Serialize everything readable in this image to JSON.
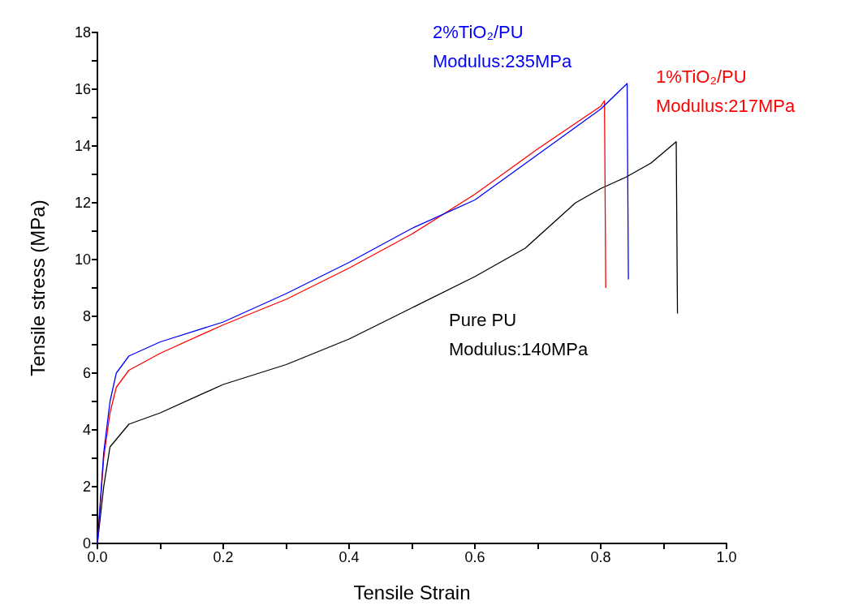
{
  "chart_data": {
    "type": "line",
    "xlabel": "Tensile Strain",
    "ylabel": "Tensile stress (MPa)",
    "xlim": [
      0,
      1.0
    ],
    "ylim": [
      0,
      18
    ],
    "xticks": [
      {
        "value": 0,
        "label": "0.0"
      },
      {
        "value": 0.1,
        "label": null
      },
      {
        "value": 0.2,
        "label": "0.2"
      },
      {
        "value": 0.3,
        "label": null
      },
      {
        "value": 0.4,
        "label": "0.4"
      },
      {
        "value": 0.5,
        "label": null
      },
      {
        "value": 0.6,
        "label": "0.6"
      },
      {
        "value": 0.7,
        "label": null
      },
      {
        "value": 0.8,
        "label": "0.8"
      },
      {
        "value": 0.9,
        "label": null
      },
      {
        "value": 1.0,
        "label": "1.0"
      }
    ],
    "yticks": [
      0,
      {
        "value": 1,
        "label": null
      },
      2,
      {
        "value": 3,
        "label": null
      },
      4,
      {
        "value": 5,
        "label": null
      },
      6,
      {
        "value": 7,
        "label": null
      },
      8,
      {
        "value": 9,
        "label": null
      },
      10,
      {
        "value": 11,
        "label": null
      },
      12,
      {
        "value": 13,
        "label": null
      },
      14,
      {
        "value": 15,
        "label": null
      },
      16,
      {
        "value": 17,
        "label": null
      },
      18
    ],
    "legend": false,
    "marker": "none",
    "line_style": "solid",
    "series": [
      {
        "name": "Pure PU",
        "color": "#000000",
        "x": [
          0,
          0.01,
          0.02,
          0.05,
          0.1,
          0.2,
          0.3,
          0.4,
          0.5,
          0.6,
          0.68,
          0.72,
          0.76,
          0.8,
          0.84,
          0.88,
          0.92,
          0.922
        ],
        "values": [
          0,
          2.0,
          3.4,
          4.2,
          4.6,
          5.6,
          6.3,
          7.2,
          8.3,
          9.4,
          10.4,
          11.2,
          12.0,
          12.5,
          12.9,
          13.4,
          14.15,
          8.1
        ]
      },
      {
        "name": "1%TiO₂/PU",
        "color": "#ff0000",
        "x": [
          0,
          0.01,
          0.02,
          0.03,
          0.05,
          0.1,
          0.2,
          0.3,
          0.4,
          0.5,
          0.6,
          0.7,
          0.8,
          0.806,
          0.808
        ],
        "values": [
          0,
          3.0,
          4.6,
          5.5,
          6.1,
          6.7,
          7.7,
          8.6,
          9.7,
          10.9,
          12.3,
          13.9,
          15.4,
          15.6,
          9.0
        ]
      },
      {
        "name": "2%TiO₂/PU",
        "color": "#0000ff",
        "x": [
          0,
          0.01,
          0.02,
          0.03,
          0.05,
          0.1,
          0.2,
          0.3,
          0.4,
          0.5,
          0.6,
          0.7,
          0.8,
          0.842,
          0.844
        ],
        "values": [
          0,
          3.2,
          5.0,
          6.0,
          6.6,
          7.1,
          7.8,
          8.8,
          9.9,
          11.1,
          12.1,
          13.7,
          15.3,
          16.2,
          9.3
        ]
      }
    ],
    "annotations": [
      "Modulus:140MPa",
      "Modulus:217MPa",
      "Modulus:235MPa"
    ]
  }
}
